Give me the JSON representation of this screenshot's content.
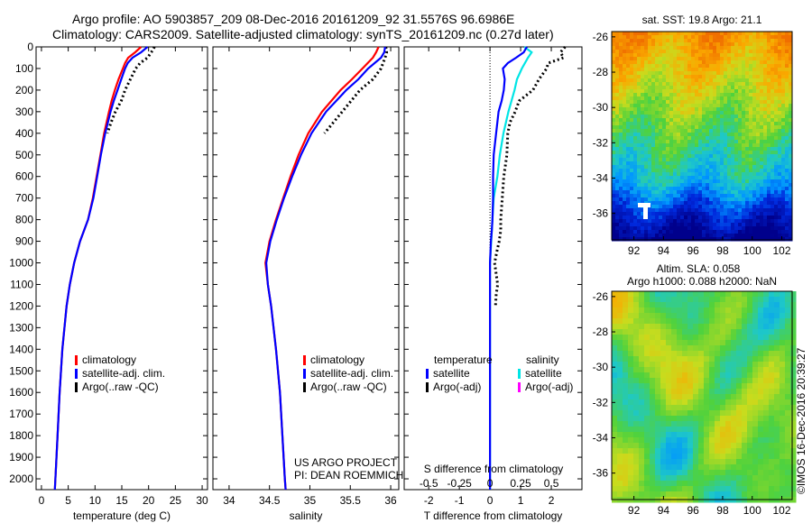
{
  "header": {
    "line1": "Argo profile: AO 5903857_209 08-Dec-2016 20161209_92 31.5576S 96.6986E",
    "line2": "Climatology: CARS2009. Satellite-adjusted climatology: synTS_20161209.nc (0.27d later)"
  },
  "colors": {
    "climatology": "#ff0000",
    "satellite": "#0000ff",
    "argo": "#000000",
    "sal_satellite": "#00e5e5",
    "sal_argo": "#ff00ff"
  },
  "depth_ticks": [
    0,
    100,
    200,
    300,
    400,
    500,
    600,
    700,
    800,
    900,
    1000,
    1100,
    1200,
    1300,
    1400,
    1500,
    1600,
    1700,
    1800,
    1900,
    2000
  ],
  "chart_data": [
    {
      "type": "line",
      "xlabel": "temperature (deg C)",
      "xlim": [
        -1,
        31
      ],
      "ylim": [
        2050,
        0
      ],
      "xticks": [
        0,
        5,
        10,
        15,
        20,
        25,
        30
      ],
      "legend": [
        "climatology",
        "satellite-adj. clim.",
        "Argo(..raw -QC)"
      ],
      "series": [
        {
          "name": "climatology",
          "depth": [
            0,
            25,
            50,
            75,
            100,
            150,
            200,
            250,
            300,
            400,
            500,
            600,
            700,
            800,
            900,
            1000,
            1100,
            1200,
            1400,
            1600,
            1800,
            2000,
            2050
          ],
          "values": [
            18.6,
            17.5,
            16.2,
            15.6,
            15.2,
            14.4,
            13.7,
            13.1,
            12.6,
            11.7,
            11.0,
            10.3,
            9.6,
            8.7,
            7.2,
            6.1,
            5.3,
            4.7,
            3.9,
            3.4,
            3.0,
            2.6,
            2.5
          ]
        },
        {
          "name": "satellite-adj. clim.",
          "depth": [
            0,
            25,
            50,
            75,
            100,
            150,
            200,
            250,
            300,
            400,
            500,
            600,
            700,
            800,
            900,
            1000,
            1100,
            1200,
            1400,
            1600,
            1800,
            2000,
            2050
          ],
          "values": [
            19.8,
            18.6,
            17.0,
            16.1,
            15.6,
            14.9,
            14.2,
            13.5,
            12.9,
            11.9,
            11.1,
            10.4,
            9.7,
            8.7,
            7.2,
            6.1,
            5.3,
            4.7,
            3.9,
            3.4,
            3.0,
            2.6,
            2.5
          ]
        },
        {
          "name": "Argo(..raw -QC)",
          "depth": [
            0,
            25,
            50,
            75,
            100,
            150,
            200,
            250,
            300,
            350,
            400
          ],
          "values": [
            21.1,
            20.5,
            19.8,
            18.4,
            17.6,
            16.6,
            15.6,
            14.9,
            13.8,
            13.0,
            12.3
          ]
        }
      ]
    },
    {
      "type": "line",
      "xlabel": "salinity",
      "xlim": [
        33.8,
        36.1
      ],
      "ylim": [
        2050,
        0
      ],
      "xticks": [
        34,
        34.5,
        35,
        35.5,
        36
      ],
      "legend": [
        "climatology",
        "satellite-adj. clim.",
        "Argo(..raw -QC)"
      ],
      "annotations": [
        "US ARGO PROJECT",
        "PI: DEAN ROEMMICH"
      ],
      "series": [
        {
          "name": "climatology",
          "depth": [
            0,
            25,
            50,
            100,
            150,
            200,
            300,
            400,
            500,
            600,
            700,
            800,
            900,
            1000,
            1100,
            1200,
            1400,
            1600,
            1800,
            2000,
            2050
          ],
          "values": [
            35.85,
            35.82,
            35.78,
            35.65,
            35.52,
            35.38,
            35.15,
            34.98,
            34.86,
            34.76,
            34.67,
            34.58,
            34.5,
            34.45,
            34.48,
            34.52,
            34.58,
            34.63,
            34.66,
            34.69,
            34.7
          ]
        },
        {
          "name": "satellite-adj. clim.",
          "depth": [
            0,
            25,
            50,
            100,
            150,
            200,
            300,
            400,
            500,
            600,
            700,
            800,
            900,
            1000,
            1100,
            1200,
            1400,
            1600,
            1800,
            2000,
            2050
          ],
          "values": [
            35.93,
            35.92,
            35.88,
            35.72,
            35.6,
            35.45,
            35.2,
            35.02,
            34.89,
            34.78,
            34.68,
            34.59,
            34.51,
            34.46,
            34.48,
            34.52,
            34.58,
            34.63,
            34.66,
            34.69,
            34.7
          ]
        },
        {
          "name": "Argo(..raw -QC)",
          "depth": [
            0,
            25,
            50,
            100,
            150,
            200,
            300,
            400
          ],
          "values": [
            35.94,
            35.95,
            35.93,
            35.88,
            35.78,
            35.62,
            35.4,
            35.18
          ]
        }
      ]
    },
    {
      "type": "line",
      "xlabel": "T difference from climatology",
      "title": "S difference from climatology",
      "xlim": [
        -2.8,
        3.0
      ],
      "ylim": [
        2050,
        0
      ],
      "xticks": [
        -2,
        -1,
        0,
        1,
        2
      ],
      "top_ticks": [
        "-0.5",
        "-0.25",
        "0",
        "0.25",
        "0.5"
      ],
      "legend_temp_header": "temperature",
      "legend_sal_header": "salinity",
      "legend": [
        "satellite",
        "Argo(-adj)",
        "satellite",
        "Argo(-adj)"
      ],
      "series": [
        {
          "name": "temperature satellite",
          "depth": [
            0,
            25,
            50,
            75,
            100,
            150,
            200,
            250,
            300,
            400,
            500,
            600,
            700,
            800,
            850,
            900,
            1000,
            1100,
            1200,
            1500,
            2000,
            2050
          ],
          "values": [
            1.2,
            1.1,
            0.85,
            0.58,
            0.42,
            0.48,
            0.45,
            0.38,
            0.28,
            0.2,
            0.12,
            0.1,
            0.1,
            0.08,
            0.06,
            0.03,
            0.0,
            0.0,
            0.0,
            0.0,
            0.0,
            0.0
          ]
        },
        {
          "name": "salinity satellite",
          "depth": [
            0,
            25,
            50,
            100,
            150,
            200,
            300,
            400,
            500,
            600,
            700,
            800,
            900,
            1000,
            1100,
            1200,
            2000,
            2050
          ],
          "values": [
            0.28,
            0.34,
            0.31,
            0.26,
            0.22,
            0.2,
            0.15,
            0.11,
            0.08,
            0.06,
            0.03,
            0.02,
            0.01,
            0.0,
            0.0,
            0.0,
            0.0,
            0.0
          ]
        },
        {
          "name": "temperature Argo(-adj)",
          "depth": [
            0,
            25,
            50,
            75,
            100,
            150,
            200,
            250,
            300,
            350,
            400,
            500,
            600,
            700,
            800,
            850,
            900,
            950,
            1000,
            1100,
            1150,
            1200
          ],
          "values": [
            2.45,
            2.3,
            2.4,
            1.9,
            1.85,
            1.6,
            1.4,
            0.95,
            0.82,
            0.65,
            0.58,
            0.55,
            0.45,
            0.4,
            0.35,
            0.35,
            0.3,
            0.22,
            0.15,
            0.25,
            0.2,
            0.18
          ]
        }
      ]
    },
    {
      "type": "heatmap",
      "title": "sat. SST: 19.8 Argo: 21.1",
      "xticks": [
        92,
        94,
        96,
        98,
        100,
        102
      ],
      "yticks": [
        -26,
        -28,
        -30,
        -32,
        -34,
        -36
      ],
      "xlim": [
        90.5,
        102.7
      ],
      "ylim": [
        -37.5,
        -25.7
      ]
    },
    {
      "type": "heatmap",
      "title_line1": "Altim. SLA: 0.058",
      "title_line2": "Argo h1000: 0.088 h2000: NaN",
      "xticks": [
        92,
        94,
        96,
        98,
        100,
        102
      ],
      "yticks": [
        -26,
        -28,
        -30,
        -32,
        -34,
        -36
      ],
      "xlim": [
        90.5,
        102.7
      ],
      "ylim": [
        -37.5,
        -25.7
      ]
    }
  ],
  "credit": "©IMOS 16-Dec-2016 20:39:27"
}
